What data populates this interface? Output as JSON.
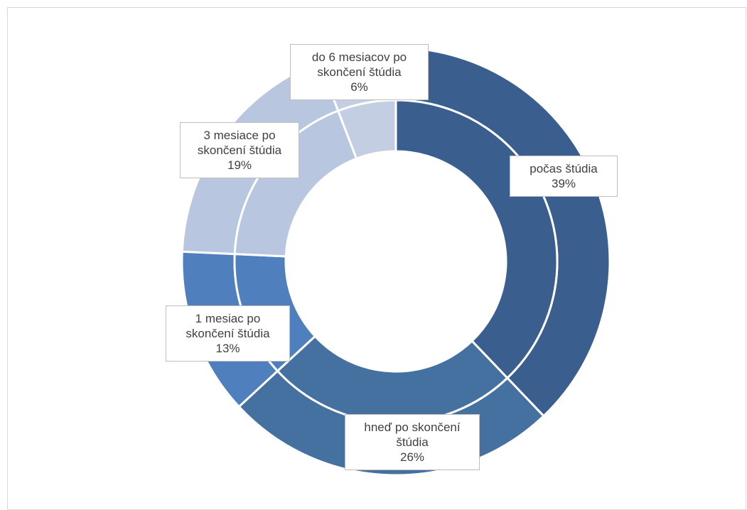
{
  "chart_data": {
    "type": "pie",
    "variant": "double-ring doughnut",
    "categories": [
      "počas štúdia",
      "hneď po skončení štúdia",
      "1 mesiac po skončení štúdia",
      "3 mesiace po skončení štúdia",
      "do 6 mesiacov po skončení štúdia"
    ],
    "values": [
      39,
      26,
      13,
      19,
      6
    ],
    "value_labels": [
      "39%",
      "26%",
      "13%",
      "19%",
      "6%"
    ],
    "label_lines": [
      [
        "počas štúdia",
        "39%"
      ],
      [
        "hneď po skončení",
        "štúdia",
        "26%"
      ],
      [
        "1 mesiac po",
        "skončení štúdia",
        "13%"
      ],
      [
        "3 mesiace po",
        "skončení štúdia",
        "19%"
      ],
      [
        "do 6 mesiacov po",
        "skončení štúdia",
        "6%"
      ]
    ],
    "colors": [
      "#3a5f8f",
      "#44719f",
      "#4f80bd",
      "#b8c6df",
      "#c3cee3"
    ],
    "title": "",
    "legend": "none",
    "start_angle_deg": 0,
    "direction": "clockwise"
  }
}
